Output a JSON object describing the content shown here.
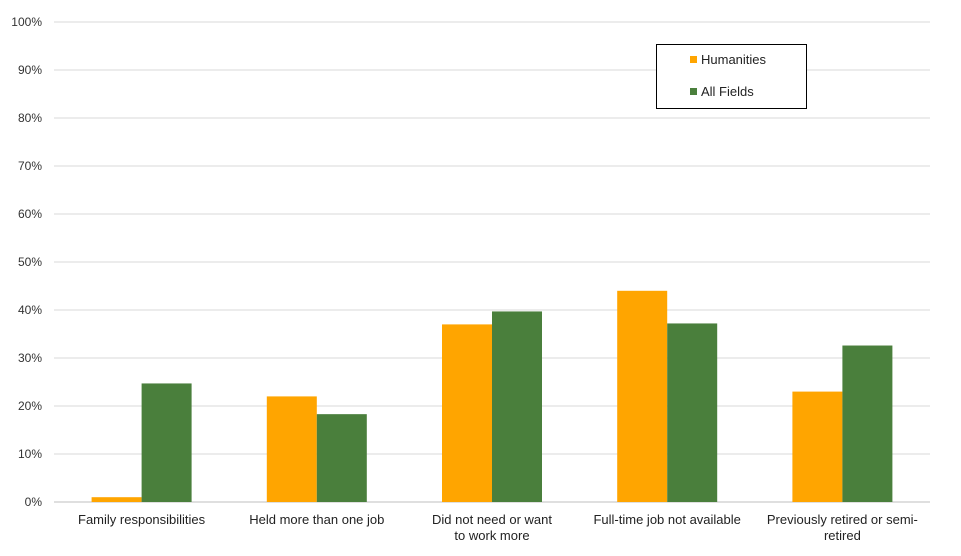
{
  "chart_data": {
    "type": "bar",
    "title": "",
    "xlabel": "",
    "ylabel": "",
    "ylim": [
      0,
      100
    ],
    "yticks": [
      "0%",
      "10%",
      "20%",
      "30%",
      "40%",
      "50%",
      "60%",
      "70%",
      "80%",
      "90%",
      "100%"
    ],
    "grid": true,
    "legend_position": "top-right",
    "categories": [
      [
        "Family responsibilities"
      ],
      [
        "Held more than one job"
      ],
      [
        "Did not need or want",
        "to work more"
      ],
      [
        "Full-time job not available"
      ],
      [
        "Previously retired or semi-",
        "retired"
      ]
    ],
    "series": [
      {
        "name": "Humanities",
        "color": "#FFA500",
        "values": [
          1,
          22,
          37,
          44,
          23
        ]
      },
      {
        "name": "All Fields",
        "color": "#4A7F3C",
        "values": [
          24.7,
          18.3,
          39.7,
          37.2,
          32.6
        ]
      }
    ]
  }
}
